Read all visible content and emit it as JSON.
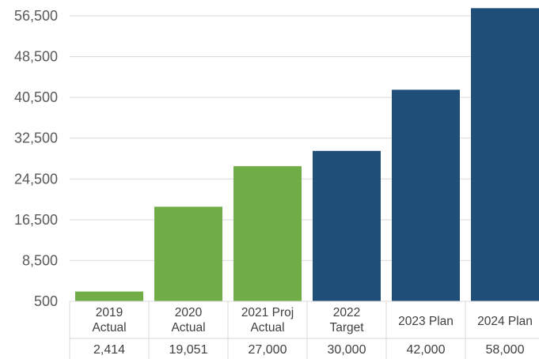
{
  "chart_data": {
    "type": "bar",
    "categories": [
      [
        "2019",
        "Actual"
      ],
      [
        "2020",
        "Actual"
      ],
      [
        "2021 Proj",
        "Actual"
      ],
      [
        "2022",
        "Target"
      ],
      [
        "2023 Plan"
      ],
      [
        "2024 Plan"
      ]
    ],
    "values": [
      2414,
      19051,
      27000,
      30000,
      42000,
      58000
    ],
    "value_labels": [
      "2,414",
      "19,051",
      "27,000",
      "30,000",
      "42,000",
      "58,000"
    ],
    "bar_colors": [
      "#70ad47",
      "#70ad47",
      "#70ad47",
      "#1f4e79",
      "#1f4e79",
      "#1f4e79"
    ],
    "yticks": [
      500,
      8500,
      16500,
      24500,
      32500,
      40500,
      48500,
      56500
    ],
    "ytick_labels": [
      "500",
      "8,500",
      "16,500",
      "24,500",
      "32,500",
      "40,500",
      "48,500",
      "56,500"
    ],
    "ylim": [
      500,
      56500
    ],
    "grid": true,
    "data_table": true
  },
  "colors": {
    "actual": "#70ad47",
    "plan": "#1f4e79",
    "grid": "#d9d9d9",
    "text": "#595959"
  }
}
